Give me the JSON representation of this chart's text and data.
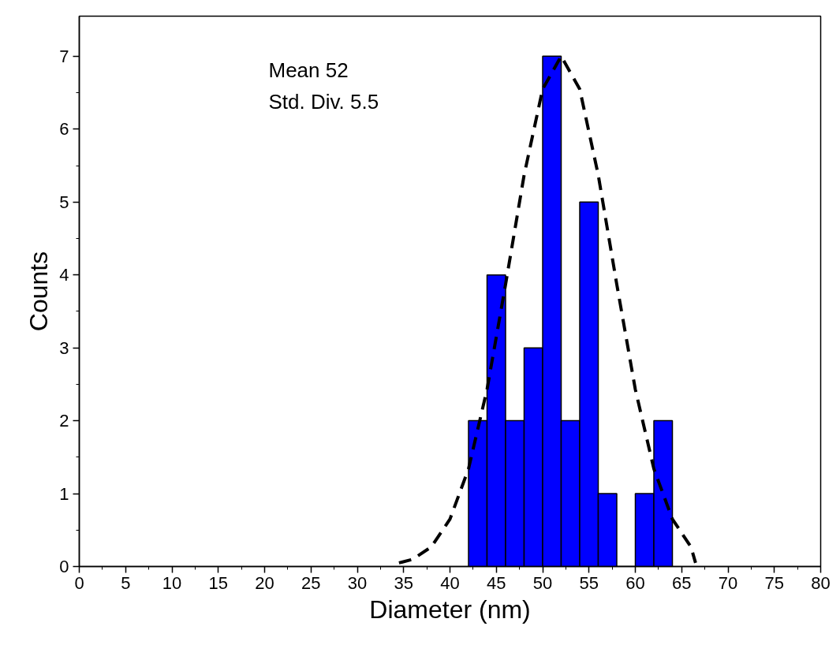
{
  "chart_data": {
    "type": "histogram",
    "xlabel": "Diameter (nm)",
    "ylabel": "Counts",
    "xlim": [
      0,
      80
    ],
    "xticks": [
      0,
      5,
      10,
      15,
      20,
      25,
      30,
      35,
      40,
      45,
      50,
      55,
      60,
      65,
      70,
      75,
      80
    ],
    "ylim": [
      0,
      7.55
    ],
    "yticks": [
      0,
      1,
      2,
      3,
      4,
      5,
      6,
      7
    ],
    "grid": false,
    "annotations": [
      "Mean 52",
      "Std. Div. 5.5"
    ],
    "series": [
      {
        "color": "#0000ff",
        "bins": [
          42,
          44,
          46,
          48,
          50,
          52,
          54,
          56,
          58,
          60,
          62,
          64
        ],
        "values": [
          2,
          4,
          2,
          3,
          7,
          2,
          5,
          1,
          0,
          1,
          2
        ]
      },
      {
        "type": "line",
        "color": "#000000",
        "line_style": "dashed",
        "x": [
          34.5,
          36,
          38,
          40,
          42,
          44,
          46,
          48,
          50,
          52,
          54,
          56,
          58,
          60,
          62,
          64,
          66,
          66.5
        ],
        "values": [
          0.05,
          0.1,
          0.27,
          0.65,
          1.34,
          2.43,
          3.87,
          5.37,
          6.55,
          7.0,
          6.55,
          5.37,
          3.87,
          2.43,
          1.34,
          0.65,
          0.27,
          0.05
        ]
      }
    ]
  }
}
